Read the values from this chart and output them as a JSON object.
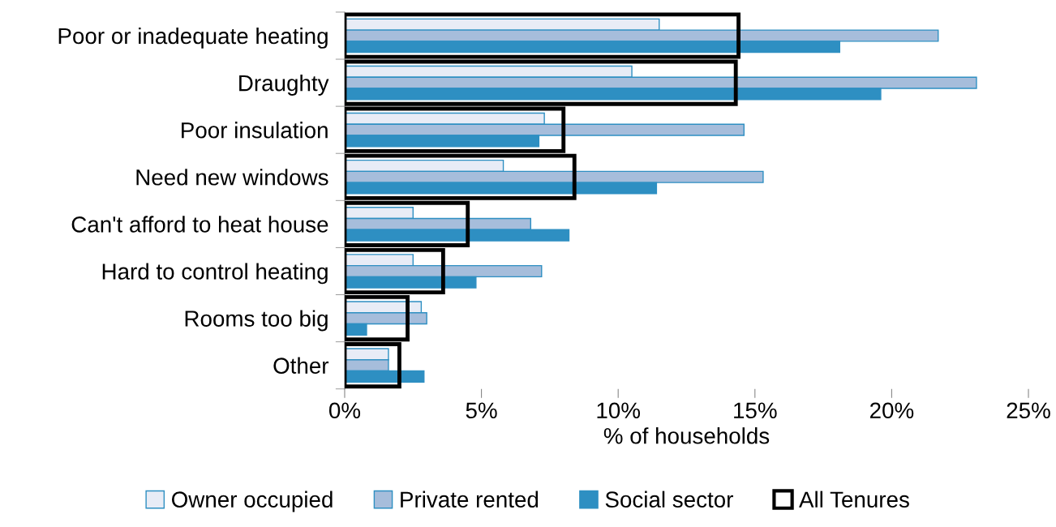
{
  "chart_data": {
    "type": "bar",
    "orientation": "horizontal",
    "xlabel": "% of households",
    "categories": [
      "Poor or inadequate heating",
      "Draughty",
      "Poor insulation",
      "Need new windows",
      "Can't afford to heat house",
      "Hard to control heating",
      "Rooms too big",
      "Other"
    ],
    "series": [
      {
        "name": "Owner occupied",
        "color": "#e8ecf6",
        "values": [
          11.5,
          10.5,
          7.3,
          5.8,
          2.5,
          2.5,
          2.8,
          1.6
        ]
      },
      {
        "name": "Private rented",
        "color": "#a6bddb",
        "values": [
          21.7,
          23.1,
          14.6,
          15.3,
          6.8,
          7.2,
          3.0,
          1.6
        ]
      },
      {
        "name": "Social sector",
        "color": "#2e8fc2",
        "values": [
          18.1,
          19.6,
          7.1,
          11.4,
          8.2,
          4.8,
          0.8,
          2.9
        ]
      },
      {
        "name": "All Tenures",
        "color": "#000000",
        "line_style": "solid",
        "values": [
          14.4,
          14.3,
          8.0,
          8.4,
          4.5,
          3.6,
          2.3,
          2.0
        ]
      }
    ],
    "xlim": [
      0,
      25
    ],
    "xticks": [
      {
        "value": 0,
        "label": "0%"
      },
      {
        "value": 5,
        "label": "5%"
      },
      {
        "value": 10,
        "label": "10%"
      },
      {
        "value": 15,
        "label": "15%"
      },
      {
        "value": 20,
        "label": "20%"
      },
      {
        "value": 25,
        "label": "25%"
      }
    ],
    "grid": false,
    "legend": "bottom"
  }
}
